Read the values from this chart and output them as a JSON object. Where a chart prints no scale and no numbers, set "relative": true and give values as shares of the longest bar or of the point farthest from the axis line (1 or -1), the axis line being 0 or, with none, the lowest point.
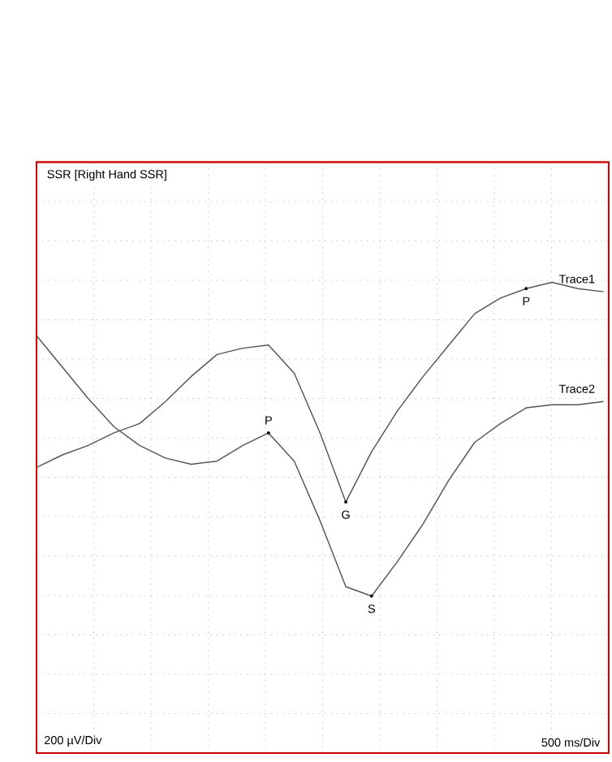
{
  "chart_data": {
    "type": "line",
    "title": "SSR [Right Hand SSR]",
    "relative": true,
    "grid": true,
    "legend": false,
    "marker": "none",
    "line_style": "solid",
    "categories": [
      null,
      null,
      null,
      null,
      null,
      null,
      null,
      null,
      null,
      null,
      null,
      null,
      null,
      null,
      null,
      null,
      null,
      null,
      null,
      null,
      null,
      null,
      null
    ],
    "series": [
      {
        "name": "Trace1",
        "color": "#555555",
        "values": [
          0.41,
          0.45,
          0.48,
          0.52,
          0.55,
          0.62,
          0.7,
          0.77,
          0.79,
          0.8,
          0.71,
          0.52,
          0.3,
          0.46,
          0.59,
          0.7,
          0.8,
          0.9,
          0.95,
          0.98,
          1.0,
          0.98,
          0.97
        ]
      },
      {
        "name": "Trace2",
        "color": "#555555",
        "values": [
          0.83,
          0.73,
          0.63,
          0.54,
          0.48,
          0.44,
          0.42,
          0.43,
          0.48,
          0.52,
          0.43,
          0.24,
          0.03,
          0.0,
          0.11,
          0.23,
          0.37,
          0.49,
          0.55,
          0.6,
          0.61,
          0.61,
          0.62
        ]
      }
    ],
    "annotations": [
      {
        "text": "P",
        "y": 0.52
      },
      {
        "text": "G",
        "y": 0.3
      },
      {
        "text": "S",
        "y": 0.0
      },
      {
        "text": "P",
        "y": 0.98
      },
      "200 µV/Div",
      "500 ms/Div"
    ]
  }
}
